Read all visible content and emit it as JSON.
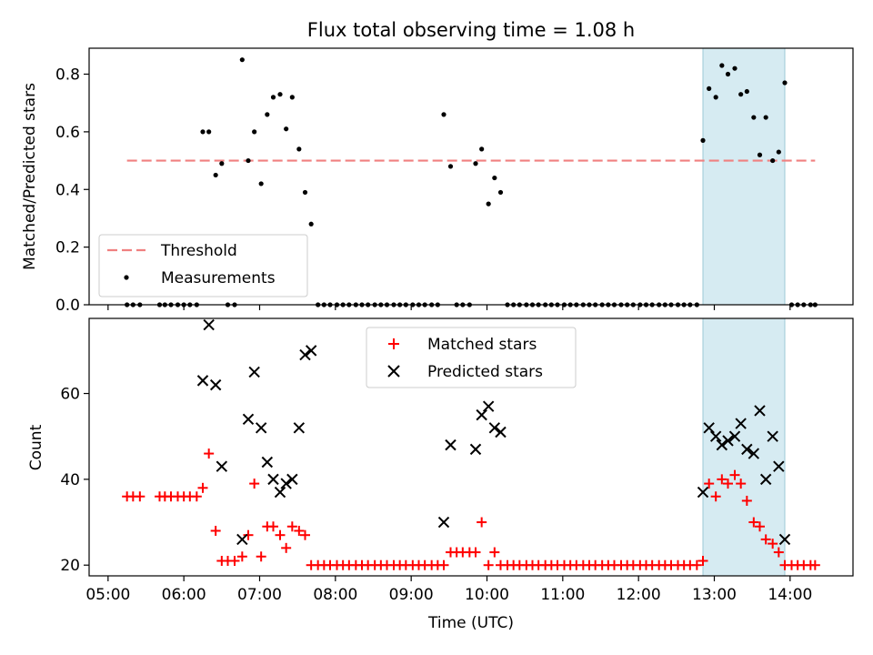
{
  "chart_data": [
    {
      "type": "scatter",
      "title": "Flux total observing time = 1.08 h",
      "xlabel": "",
      "ylabel": "Matched/Predicted stars",
      "xlim": [
        4.75,
        14.83
      ],
      "ylim": [
        0.0,
        0.89
      ],
      "yticks": [
        0.0,
        0.2,
        0.4,
        0.6,
        0.8
      ],
      "ytick_labels": [
        "0.0",
        "0.2",
        "0.4",
        "0.6",
        "0.8"
      ],
      "highlight_span": [
        12.85,
        13.93
      ],
      "legend": {
        "position": "lower left",
        "entries": [
          "Threshold",
          "Measurements"
        ]
      },
      "threshold": {
        "name": "Threshold",
        "value": 0.5,
        "x": [
          5.25,
          14.33
        ],
        "color": "#f08080"
      },
      "series": [
        {
          "name": "Measurements",
          "color": "#000000",
          "x": [
            5.25,
            5.33,
            5.42,
            5.68,
            5.75,
            5.83,
            5.92,
            6.0,
            6.08,
            6.17,
            6.25,
            6.33,
            6.42,
            6.5,
            6.58,
            6.67,
            6.77,
            6.85,
            6.93,
            7.02,
            7.1,
            7.18,
            7.27,
            7.35,
            7.43,
            7.52,
            7.6,
            7.68,
            7.77,
            7.85,
            7.93,
            8.02,
            8.1,
            8.18,
            8.27,
            8.35,
            8.43,
            8.52,
            8.6,
            8.68,
            8.77,
            8.85,
            8.93,
            9.02,
            9.1,
            9.18,
            9.27,
            9.35,
            9.43,
            9.52,
            9.6,
            9.68,
            9.77,
            9.85,
            9.93,
            10.02,
            10.1,
            10.18,
            10.27,
            10.35,
            10.43,
            10.52,
            10.6,
            10.68,
            10.77,
            10.85,
            10.93,
            11.02,
            11.1,
            11.18,
            11.27,
            11.35,
            11.43,
            11.52,
            11.6,
            11.68,
            11.77,
            11.85,
            11.93,
            12.02,
            12.1,
            12.18,
            12.27,
            12.35,
            12.43,
            12.52,
            12.6,
            12.68,
            12.77,
            12.85,
            12.93,
            13.02,
            13.1,
            13.18,
            13.27,
            13.35,
            13.43,
            13.52,
            13.6,
            13.68,
            13.77,
            13.85,
            13.93,
            14.02,
            14.1,
            14.18,
            14.27,
            14.33
          ],
          "y": [
            0,
            0,
            0,
            0,
            0,
            0,
            0,
            0,
            0,
            0,
            0.6,
            0.6,
            0.45,
            0.49,
            0,
            0,
            0.85,
            0.5,
            0.6,
            0.42,
            0.66,
            0.72,
            0.73,
            0.61,
            0.72,
            0.54,
            0.39,
            0.28,
            0,
            0,
            0,
            0,
            0,
            0,
            0,
            0,
            0,
            0,
            0,
            0,
            0,
            0,
            0,
            0,
            0,
            0,
            0,
            0,
            0.66,
            0.48,
            0,
            0,
            0,
            0.49,
            0.54,
            0.35,
            0.44,
            0.39,
            0,
            0,
            0,
            0,
            0,
            0,
            0,
            0,
            0,
            0,
            0,
            0,
            0,
            0,
            0,
            0,
            0,
            0,
            0,
            0,
            0,
            0,
            0,
            0,
            0,
            0,
            0,
            0,
            0,
            0,
            0,
            0.57,
            0.75,
            0.72,
            0.83,
            0.8,
            0.82,
            0.73,
            0.74,
            0.65,
            0.52,
            0.65,
            0.5,
            0.53,
            0.77,
            0,
            0,
            0,
            0,
            0
          ]
        }
      ]
    },
    {
      "type": "scatter",
      "title": "",
      "xlabel": "Time (UTC)",
      "ylabel": "Count",
      "xlim": [
        4.75,
        14.83
      ],
      "ylim": [
        17.5,
        77.5
      ],
      "yticks": [
        20,
        40,
        60
      ],
      "ytick_labels": [
        "20",
        "40",
        "60"
      ],
      "xticks": [
        5,
        6,
        7,
        8,
        9,
        10,
        11,
        12,
        13,
        14
      ],
      "xtick_labels": [
        "05:00",
        "06:00",
        "07:00",
        "08:00",
        "09:00",
        "10:00",
        "11:00",
        "12:00",
        "13:00",
        "14:00"
      ],
      "highlight_span": [
        12.85,
        13.93
      ],
      "legend": {
        "position": "upper center",
        "entries": [
          "Matched stars",
          "Predicted stars"
        ]
      },
      "series": [
        {
          "name": "Matched stars",
          "marker": "plus",
          "color": "#ff0000",
          "x": [
            5.25,
            5.33,
            5.42,
            5.68,
            5.75,
            5.83,
            5.92,
            6.0,
            6.08,
            6.17,
            6.25,
            6.33,
            6.42,
            6.5,
            6.58,
            6.67,
            6.77,
            6.85,
            6.93,
            7.02,
            7.1,
            7.18,
            7.27,
            7.35,
            7.43,
            7.52,
            7.6,
            7.68,
            7.77,
            7.85,
            7.93,
            8.02,
            8.1,
            8.18,
            8.27,
            8.35,
            8.43,
            8.52,
            8.6,
            8.68,
            8.77,
            8.85,
            8.93,
            9.02,
            9.1,
            9.18,
            9.27,
            9.35,
            9.43,
            9.52,
            9.6,
            9.68,
            9.77,
            9.85,
            9.93,
            10.02,
            10.1,
            10.18,
            10.27,
            10.35,
            10.43,
            10.52,
            10.6,
            10.68,
            10.77,
            10.85,
            10.93,
            11.02,
            11.1,
            11.18,
            11.27,
            11.35,
            11.43,
            11.52,
            11.6,
            11.68,
            11.77,
            11.85,
            11.93,
            12.02,
            12.1,
            12.18,
            12.27,
            12.35,
            12.43,
            12.52,
            12.6,
            12.68,
            12.77,
            12.85,
            12.93,
            13.02,
            13.1,
            13.18,
            13.27,
            13.35,
            13.43,
            13.52,
            13.6,
            13.68,
            13.77,
            13.85,
            13.93,
            14.02,
            14.1,
            14.18,
            14.27,
            14.33
          ],
          "y": [
            36,
            36,
            36,
            36,
            36,
            36,
            36,
            36,
            36,
            36,
            38,
            46,
            28,
            21,
            21,
            21,
            22,
            27,
            39,
            22,
            29,
            29,
            27,
            24,
            29,
            28,
            27,
            20,
            20,
            20,
            20,
            20,
            20,
            20,
            20,
            20,
            20,
            20,
            20,
            20,
            20,
            20,
            20,
            20,
            20,
            20,
            20,
            20,
            20,
            23,
            23,
            23,
            23,
            23,
            30,
            20,
            23,
            20,
            20,
            20,
            20,
            20,
            20,
            20,
            20,
            20,
            20,
            20,
            20,
            20,
            20,
            20,
            20,
            20,
            20,
            20,
            20,
            20,
            20,
            20,
            20,
            20,
            20,
            20,
            20,
            20,
            20,
            20,
            20,
            21,
            39,
            36,
            40,
            39,
            41,
            39,
            35,
            30,
            29,
            26,
            25,
            23,
            20,
            20,
            20,
            20,
            20,
            20
          ]
        },
        {
          "name": "Predicted stars",
          "marker": "x",
          "color": "#000000",
          "x": [
            6.25,
            6.33,
            6.42,
            6.5,
            6.77,
            6.85,
            6.93,
            7.02,
            7.1,
            7.18,
            7.27,
            7.35,
            7.43,
            7.52,
            7.6,
            7.68,
            9.43,
            9.52,
            9.85,
            9.93,
            10.02,
            10.1,
            10.18,
            12.85,
            12.93,
            13.02,
            13.1,
            13.18,
            13.27,
            13.35,
            13.43,
            13.52,
            13.6,
            13.68,
            13.77,
            13.85,
            13.93
          ],
          "y": [
            63,
            76,
            62,
            43,
            26,
            54,
            65,
            52,
            44,
            40,
            37,
            39,
            40,
            52,
            69,
            70,
            30,
            48,
            47,
            55,
            57,
            52,
            51,
            37,
            52,
            50,
            48,
            49,
            50,
            53,
            47,
            46,
            56,
            40,
            50,
            43,
            26
          ]
        }
      ]
    }
  ]
}
